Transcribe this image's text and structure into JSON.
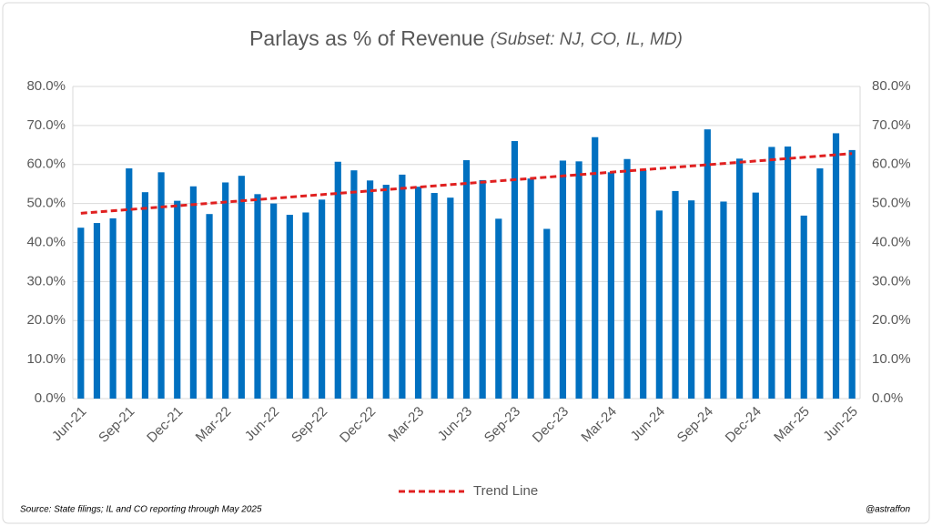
{
  "chart_data": {
    "type": "bar",
    "title": "Parlays as % of Revenue",
    "subtitle": "(Subset: NJ, CO, IL, MD)",
    "categories": [
      "Jun-21",
      null,
      null,
      "Sep-21",
      null,
      null,
      "Dec-21",
      null,
      null,
      "Mar-22",
      null,
      null,
      "Jun-22",
      null,
      null,
      "Sep-22",
      null,
      null,
      "Dec-22",
      null,
      null,
      "Mar-23",
      null,
      null,
      "Jun-23",
      null,
      null,
      "Sep-23",
      null,
      null,
      "Dec-23",
      null,
      null,
      "Mar-24",
      null,
      null,
      "Jun-24",
      null,
      null,
      "Sep-24",
      null,
      null,
      "Dec-24",
      null,
      null,
      "Mar-25",
      null,
      null,
      "Jun-25"
    ],
    "values": [
      43.8,
      45,
      46.2,
      59,
      52.9,
      58,
      50.7,
      54.4,
      47.3,
      55.4,
      57.1,
      52.4,
      50,
      47.1,
      47.7,
      51,
      60.7,
      58.5,
      55.9,
      54.8,
      57.4,
      54.3,
      52.7,
      51.5,
      61.1,
      56,
      46.1,
      66,
      56.4,
      43.5,
      61,
      60.8,
      67,
      58,
      61.4,
      58.6,
      48.2,
      53.2,
      50.8,
      69,
      50.5,
      61.5,
      52.8,
      64.5,
      64.6,
      46.9,
      59,
      68,
      63.7
    ],
    "color": "#0070c0",
    "trend": {
      "name": "Trend Line",
      "color": "#e02020",
      "start": 47.5,
      "end": 62.8
    },
    "ylim": [
      0,
      80
    ],
    "yticks": [
      {
        "value": 0,
        "label": "0.0%"
      },
      {
        "value": 10,
        "label": "10.0%"
      },
      {
        "value": 20,
        "label": "20.0%"
      },
      {
        "value": 30,
        "label": "30.0%"
      },
      {
        "value": 40,
        "label": "40.0%"
      },
      {
        "value": 50,
        "label": "50.0%"
      },
      {
        "value": 60,
        "label": "60.0%"
      },
      {
        "value": 70,
        "label": "70.0%"
      },
      {
        "value": 80,
        "label": "80.0%"
      }
    ],
    "y2lim": [
      0,
      80
    ],
    "y2ticks": [
      {
        "value": 0,
        "label": "0.0%"
      },
      {
        "value": 10,
        "label": "10.0%"
      },
      {
        "value": 20,
        "label": "20.0%"
      },
      {
        "value": 30,
        "label": "30.0%"
      },
      {
        "value": 40,
        "label": "40.0%"
      },
      {
        "value": 50,
        "label": "50.0%"
      },
      {
        "value": 60,
        "label": "60.0%"
      },
      {
        "value": 70,
        "label": "70.0%"
      },
      {
        "value": 80,
        "label": "80.0%"
      }
    ],
    "grid": true,
    "legend": "bottom",
    "source": "Source: State filings; IL and CO reporting through May 2025",
    "credit": "@astraffon"
  }
}
